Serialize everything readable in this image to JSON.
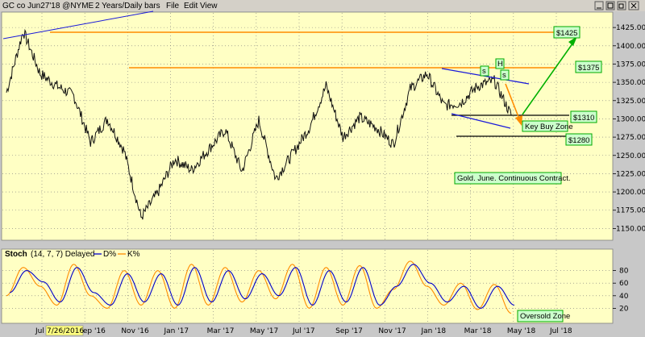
{
  "window": {
    "title": "GC co Jun27'18 @NYME",
    "subtitle": "2 Years/Daily bars",
    "menu": [
      "File",
      "Edit",
      "View"
    ]
  },
  "stoch_panel": {
    "label": "Stoch",
    "params": "(14, 7, 7) Delayed",
    "legend": [
      "D%",
      "K%"
    ]
  },
  "annotations": {
    "gold_note": "Gold. June. Continuous Contract.",
    "key_buy_zone": "Key Buy Zone",
    "oversold_zone": "Oversold Zone",
    "h_label": "H",
    "s_label": "s",
    "date_flag": "7/26/2016",
    "levels": [
      "$1425",
      "$1375",
      "$1310",
      "$1280"
    ]
  },
  "colors": {
    "chart_bg": "#ffffc4",
    "price": "#111111",
    "level_line": "#ff8c00",
    "channel": "#1a1ad9",
    "arrow_green": "#00b000",
    "arrow_orange": "#ff8c00",
    "box_border": "#00a800",
    "box_bg": "#ccffcc",
    "stoch_d": "#0000cc",
    "stoch_k": "#ff8c00"
  },
  "chart_data": [
    {
      "type": "line",
      "title": "GC co Jun27'18 @NYME 2 Years/Daily bars",
      "xlabel": "",
      "ylabel": "",
      "ylim": [
        1135,
        1445
      ],
      "yticks": [
        1150,
        1175,
        1200,
        1225,
        1250,
        1275,
        1300,
        1325,
        1350,
        1375,
        1400,
        1425
      ],
      "ytick_labels": [
        "1150.00",
        "1175.00",
        "1200.00",
        "1225.00",
        "1250.00",
        "1275.00",
        "1300.00",
        "1325.00",
        "1350.00",
        "1375.00",
        "1400.00",
        "1425.00"
      ],
      "xticks": [
        "Jul",
        "Sep '16",
        "Nov '16",
        "Jan '17",
        "Mar '17",
        "May '17",
        "Jul '17",
        "Sep '17",
        "Nov '17",
        "Jan '18",
        "Mar '18",
        "May '18",
        "Jul '18"
      ],
      "grid": true,
      "series": [
        {
          "x": [
            "Jul '16",
            "Jul '16",
            "Aug '16",
            "Sep '16",
            "Sep '16",
            "Oct '16",
            "Nov '16",
            "Nov '16",
            "Dec '16",
            "Jan '17",
            "Feb '17",
            "Mar '17",
            "Mar '17",
            "Apr '17",
            "May '17",
            "Jun '17",
            "Jul '17",
            "Jul '17",
            "Aug '17",
            "Sep '17",
            "Oct '17",
            "Oct '17",
            "Nov '17",
            "Dec '17",
            "Jan '18",
            "Jan '18",
            "Feb '18",
            "Mar '18",
            "Apr '18",
            "Apr '18",
            "May '18"
          ],
          "values": [
            1336,
            1420,
            1362,
            1345,
            1332,
            1268,
            1300,
            1256,
            1165,
            1199,
            1245,
            1230,
            1258,
            1285,
            1228,
            1298,
            1218,
            1252,
            1288,
            1345,
            1275,
            1302,
            1288,
            1265,
            1341,
            1362,
            1318,
            1322,
            1345,
            1352,
            1305
          ]
        }
      ],
      "levels": [
        1425,
        1375,
        1310,
        1280
      ]
    },
    {
      "type": "line",
      "title": "Stoch (14, 7, 7) Delayed",
      "ylim": [
        0,
        100
      ],
      "yticks": [
        20,
        40,
        60,
        80
      ],
      "series": [
        {
          "name": "D%",
          "values": [
            45,
            80,
            62,
            30,
            85,
            45,
            25,
            75,
            30,
            75,
            25,
            85,
            30,
            80,
            35,
            75,
            40,
            85,
            25,
            80,
            30,
            85,
            25,
            55,
            90,
            60,
            30,
            55,
            20,
            55,
            25
          ]
        },
        {
          "name": "K%",
          "values": [
            40,
            85,
            55,
            25,
            90,
            40,
            20,
            80,
            25,
            80,
            20,
            90,
            25,
            85,
            30,
            80,
            35,
            90,
            20,
            85,
            25,
            88,
            20,
            50,
            95,
            55,
            25,
            60,
            18,
            58,
            12
          ]
        }
      ]
    }
  ]
}
